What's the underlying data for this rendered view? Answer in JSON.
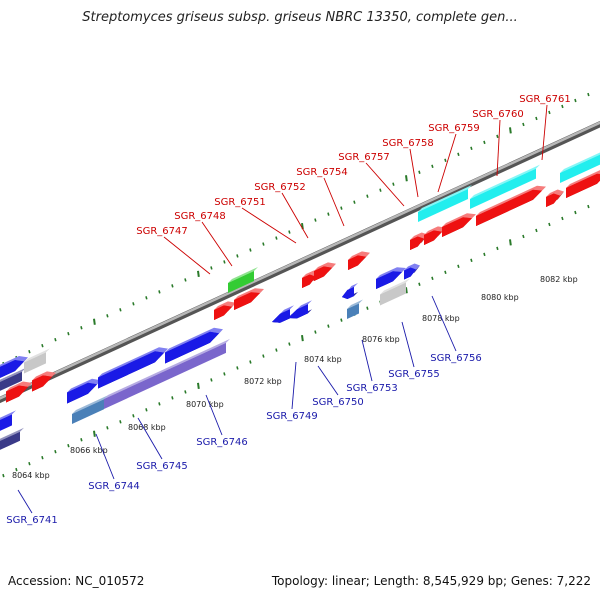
{
  "title": "Streptomyces griseus subsp. griseus NBRC 13350, complete gen...",
  "footer": {
    "accession": "Accession: NC_010572",
    "summary": "Topology: linear; Length: 8,545,929 bp; Genes: 7,222"
  },
  "colors": {
    "axis": "#8c8c8c",
    "tick": "#2a7a2a",
    "label_top": "#cc0000",
    "label_bottom": "#1a1aaa",
    "red": "#ee1111",
    "blue": "#1a1ae6",
    "cyan": "#22eeee",
    "green": "#33cc33",
    "gray": "#c8c8c8",
    "steel": "#4a80b8",
    "lavender": "#7a66cc",
    "navy": "#3a3a88"
  },
  "scale_labels": [
    "8064 kbp",
    "8066 kbp",
    "8068 kbp",
    "8070 kbp",
    "8072 kbp",
    "8074 kbp",
    "8076 kbp",
    "8078 kbp",
    "8080 kbp",
    "8082 kbp"
  ],
  "top_genes": [
    "SGR_6747",
    "SGR_6748",
    "SGR_6751",
    "SGR_6752",
    "SGR_6754",
    "SGR_6757",
    "SGR_6758",
    "SGR_6759",
    "SGR_6760",
    "SGR_6761"
  ],
  "bottom_genes": [
    "SGR_6741",
    "SGR_6744",
    "SGR_6745",
    "SGR_6746",
    "SGR_6749",
    "SGR_6750",
    "SGR_6753",
    "SGR_6755",
    "SGR_6756"
  ]
}
